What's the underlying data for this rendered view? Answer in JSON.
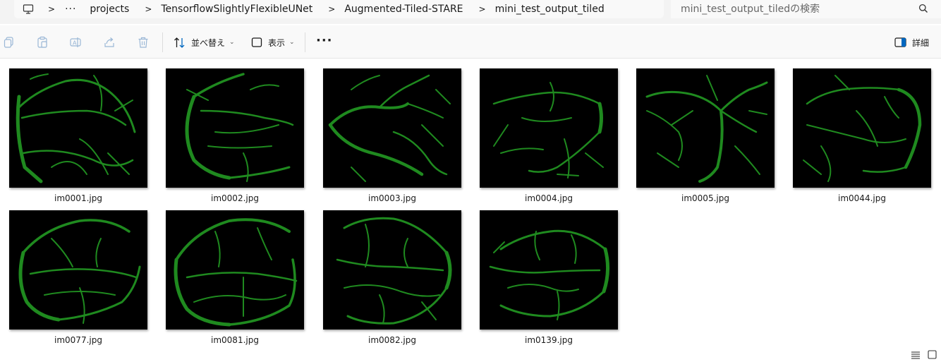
{
  "breadcrumb": {
    "items": [
      "projects",
      "TensorflowSlightlyFlexibleUNet",
      "Augmented-Tiled-STARE",
      "mini_test_output_tiled"
    ],
    "more": "···",
    "sep": ">"
  },
  "search": {
    "placeholder": "mini_test_output_tiledの検索"
  },
  "toolbar": {
    "sort_label": "並べ替え",
    "view_label": "表示",
    "more_label": "···",
    "details_label": "詳細"
  },
  "files": [
    {
      "name": "im0001.jpg"
    },
    {
      "name": "im0002.jpg"
    },
    {
      "name": "im0003.jpg"
    },
    {
      "name": "im0004.jpg"
    },
    {
      "name": "im0005.jpg"
    },
    {
      "name": "im0044.jpg"
    },
    {
      "name": "im0077.jpg"
    },
    {
      "name": "im0081.jpg"
    },
    {
      "name": "im0082.jpg"
    },
    {
      "name": "im0139.jpg"
    }
  ],
  "colors": {
    "vessel": "#1f8a1f",
    "thumb_bg": "#000000",
    "accent": "#0067c0"
  }
}
